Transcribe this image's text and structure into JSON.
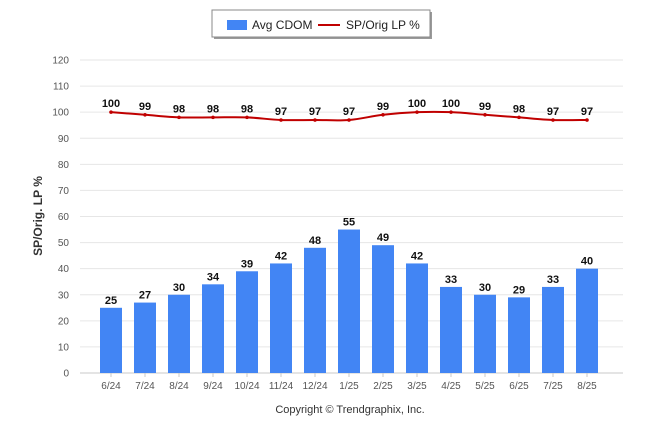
{
  "chart_data": {
    "type": "bar",
    "categories": [
      "6/24",
      "7/24",
      "8/24",
      "9/24",
      "10/24",
      "11/24",
      "12/24",
      "1/25",
      "2/25",
      "3/25",
      "4/25",
      "5/25",
      "6/25",
      "7/25",
      "8/25"
    ],
    "series": [
      {
        "name": "Avg CDOM",
        "type": "bar",
        "color": "#4285f4",
        "values": [
          25,
          27,
          30,
          34,
          39,
          42,
          48,
          55,
          49,
          42,
          33,
          30,
          29,
          33,
          40
        ]
      },
      {
        "name": "SP/Orig LP %",
        "type": "line",
        "color": "#c00000",
        "values": [
          100,
          99,
          98,
          98,
          98,
          97,
          97,
          97,
          99,
          100,
          100,
          99,
          98,
          97,
          97
        ]
      }
    ],
    "ylabel": "SP/Orig. LP %",
    "xlabel": "",
    "ylim": [
      0,
      120
    ],
    "yticks": [
      0,
      10,
      20,
      30,
      40,
      50,
      60,
      70,
      80,
      90,
      100,
      110,
      120
    ],
    "grid": true,
    "legend_position": "top-center",
    "credit": "Copyright © Trendgraphix, Inc."
  }
}
